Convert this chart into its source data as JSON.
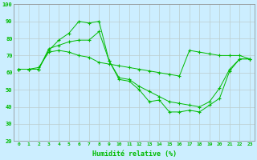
{
  "title": "",
  "xlabel": "Humidité relative (%)",
  "ylabel": "",
  "background_color": "#cceeff",
  "grid_color": "#bbcccc",
  "line_color": "#00bb00",
  "marker": "+",
  "x_ticks": [
    0,
    1,
    2,
    3,
    4,
    5,
    6,
    7,
    8,
    9,
    10,
    11,
    12,
    13,
    14,
    15,
    16,
    17,
    18,
    19,
    20,
    21,
    22,
    23
  ],
  "y_ticks": [
    20,
    30,
    40,
    50,
    60,
    70,
    80,
    90,
    100
  ],
  "xlim": [
    -0.5,
    23.5
  ],
  "ylim": [
    20,
    100
  ],
  "series": [
    [
      62,
      62,
      62,
      73,
      79,
      83,
      90,
      89,
      90,
      67,
      56,
      55,
      50,
      43,
      44,
      37,
      37,
      38,
      37,
      41,
      45,
      61,
      68,
      68
    ],
    [
      62,
      62,
      62,
      74,
      76,
      78,
      79,
      79,
      84,
      67,
      57,
      56,
      52,
      49,
      46,
      43,
      42,
      41,
      40,
      43,
      51,
      62,
      68,
      68
    ],
    [
      62,
      62,
      63,
      72,
      73,
      72,
      70,
      69,
      66,
      65,
      64,
      63,
      62,
      61,
      60,
      59,
      58,
      73,
      72,
      71,
      70,
      70,
      70,
      68
    ]
  ]
}
